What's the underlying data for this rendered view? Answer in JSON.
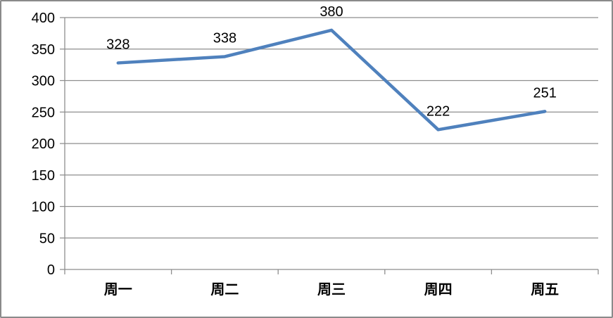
{
  "chart_data": {
    "type": "line",
    "title": "",
    "categories": [
      "周一",
      "周二",
      "周三",
      "周四",
      "周五"
    ],
    "series": [
      {
        "name": "",
        "values": [
          328,
          338,
          380,
          222,
          251
        ]
      }
    ],
    "data_labels": [
      "328",
      "338",
      "380",
      "222",
      "251"
    ],
    "xlabel": "",
    "ylabel": "",
    "ylim": [
      0,
      400
    ],
    "yticks": [
      0,
      50,
      100,
      150,
      200,
      250,
      300,
      350,
      400
    ],
    "ytick_labels": [
      "0",
      "50",
      "100",
      "150",
      "200",
      "250",
      "300",
      "350",
      "400"
    ],
    "grid": true,
    "legend_position": "none",
    "colors": {
      "series_line": "#4F81BD",
      "gridline": "#8e8e8e",
      "axis": "#8e8e8e",
      "label_text": "#000000",
      "plot_background": "#ffffff",
      "frame_border": "#8a8a8a"
    }
  }
}
